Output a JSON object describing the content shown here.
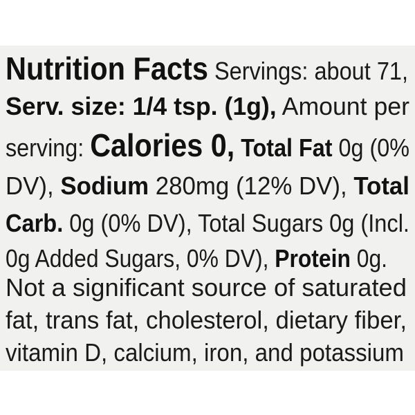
{
  "label": {
    "lines": [
      {
        "segments": [
          {
            "text": "Nutrition Facts",
            "bold": true,
            "large": true
          },
          {
            "text": " Servings: about 71,"
          }
        ]
      },
      {
        "segments": [
          {
            "text": "Serv. size: 1/4 tsp. (1g),",
            "bold": true
          },
          {
            "text": " Amount per"
          }
        ]
      },
      {
        "segments": [
          {
            "text": "serving: "
          },
          {
            "text": "Calories 0,",
            "bold": true,
            "large": true
          },
          {
            "text": " "
          },
          {
            "text": "Total Fat",
            "bold": true
          },
          {
            "text": " 0g (0%"
          }
        ]
      },
      {
        "segments": [
          {
            "text": "DV), "
          },
          {
            "text": "Sodium",
            "bold": true
          },
          {
            "text": " 280mg (12% DV), "
          },
          {
            "text": "Total",
            "bold": true
          }
        ]
      },
      {
        "segments": [
          {
            "text": "Carb.",
            "bold": true
          },
          {
            "text": " 0g (0% DV), Total Sugars 0g (Incl."
          }
        ]
      },
      {
        "segments": [
          {
            "text": "0g Added Sugars, 0% DV), "
          },
          {
            "text": "Protein",
            "bold": true
          },
          {
            "text": " 0g."
          }
        ]
      },
      {
        "segments": [
          {
            "text": "Not a significant source of saturated"
          }
        ]
      },
      {
        "segments": [
          {
            "text": "fat, trans fat, cholesterol, dietary fiber,"
          }
        ]
      },
      {
        "segments": [
          {
            "text": "vitamin D, calcium, iron, and potassium"
          }
        ]
      }
    ]
  }
}
